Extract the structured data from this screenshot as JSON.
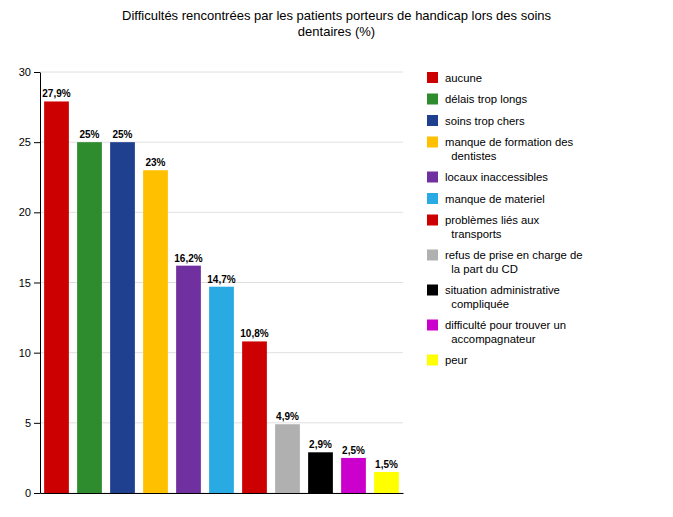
{
  "chart_data": {
    "type": "bar",
    "title": "Difficultés rencontrées par les patients porteurs de handicap lors des soins\ndentaires (%)",
    "categories": [
      "aucune",
      "délais trop longs",
      "soins trop chers",
      "manque de formation des\n  dentistes",
      "locaux inaccessibles",
      "manque de materiel",
      "problèmes liés aux\n  transports",
      "refus de prise en charge de\n  la part du CD",
      "situation administrative\n  compliquée",
      "difficulté pour trouver un\n  accompagnateur",
      "peur"
    ],
    "values": [
      27.9,
      25.0,
      25.0,
      23.0,
      16.2,
      14.7,
      10.8,
      4.9,
      2.9,
      2.5,
      1.5
    ],
    "value_labels": [
      "27,9%",
      "25%",
      "25%",
      "23%",
      "16,2%",
      "14,7%",
      "10,8%",
      "4,9%",
      "2,9%",
      "2,5%",
      "1,5%"
    ],
    "colors": [
      "#cc0000",
      "#2e8b2e",
      "#1f3f8f",
      "#ffc000",
      "#7030a0",
      "#29aae2",
      "#cc0000",
      "#b0b0b0",
      "#000000",
      "#cc00cc",
      "#ffff00"
    ],
    "ylim": [
      0,
      30
    ],
    "yticks": [
      0,
      5,
      10,
      15,
      20,
      25,
      30
    ],
    "grid": true,
    "data_labels": true,
    "tick_labels": "y",
    "legend": "right"
  }
}
